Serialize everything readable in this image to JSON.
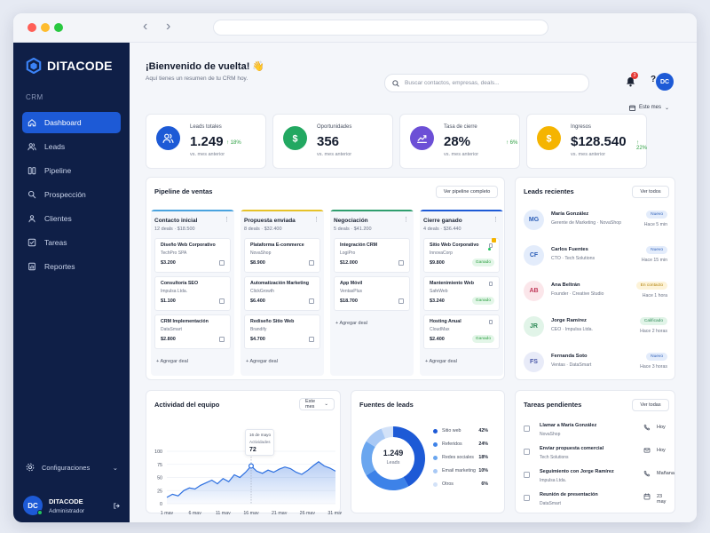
{
  "brand": {
    "name": "DITACODE"
  },
  "sidebar": {
    "section_label": "CRM",
    "items": [
      {
        "label": "Dashboard",
        "icon": "home-icon",
        "active": true
      },
      {
        "label": "Leads",
        "icon": "users-icon"
      },
      {
        "label": "Pipeline",
        "icon": "columns-icon"
      },
      {
        "label": "Prospección",
        "icon": "search-icon"
      },
      {
        "label": "Clientes",
        "icon": "user-group-icon"
      },
      {
        "label": "Tareas",
        "icon": "checkbox-icon"
      },
      {
        "label": "Reportes",
        "icon": "report-icon"
      }
    ],
    "config_label": "Configuraciones",
    "user": {
      "initials": "DC",
      "name": "DITACODE",
      "role": "Administrador"
    }
  },
  "header": {
    "welcome": "¡Bienvenido de vuelta! 👋",
    "subtitle": "Aquí tienes un resumen de tu CRM hoy.",
    "search_placeholder": "Buscar contactos, empresas, deals...",
    "notifications": "3",
    "avatar": "DC",
    "period": "Este mes"
  },
  "kpis": [
    {
      "label": "Leads totales",
      "value": "1.249",
      "delta": "18%",
      "sub": "vs. mes anterior",
      "color": "#1d5ad6",
      "icon": "users-icon"
    },
    {
      "label": "Oportunidades",
      "value": "356",
      "delta": "12%",
      "sub": "vs. mes anterior",
      "color": "#22a861",
      "icon": "dollar-icon"
    },
    {
      "label": "Tasa de cierre",
      "value": "28%",
      "delta": "6%",
      "sub": "vs. mes anterior",
      "color": "#6c4fd6",
      "icon": "chart-up-icon"
    },
    {
      "label": "Ingresos",
      "value": "$128.540",
      "delta": "22%",
      "sub": "vs. mes anterior",
      "color": "#f5b400",
      "icon": "dollar-icon"
    }
  ],
  "pipeline": {
    "title": "Pipeline de ventas",
    "button": "Ver pipeline completo",
    "add_label": "Agregar deal",
    "won_label": "Ganado",
    "columns": [
      {
        "title": "Contacto inicial",
        "sub": "12 deals · $18.500",
        "color": "#4aa3df",
        "deals": [
          {
            "name": "Diseño Web Corporativo",
            "company": "TechPro SPA",
            "amount": "$3.200"
          },
          {
            "name": "Consultoría SEO",
            "company": "Impulsa Ltda.",
            "amount": "$1.100"
          },
          {
            "name": "CRM Implementación",
            "company": "DataSmart",
            "amount": "$2.800"
          }
        ]
      },
      {
        "title": "Propuesta enviada",
        "sub": "8 deals · $32.400",
        "color": "#e6c229",
        "deals": [
          {
            "name": "Plataforma E-commerce",
            "company": "NovaShop",
            "amount": "$8.900"
          },
          {
            "name": "Automatización Marketing",
            "company": "ClickGrowth",
            "amount": "$6.400"
          },
          {
            "name": "Rediseño Sitio Web",
            "company": "Brandify",
            "amount": "$4.700"
          }
        ]
      },
      {
        "title": "Negociación",
        "sub": "5 deals · $41.200",
        "color": "#2f9e6e",
        "deals": [
          {
            "name": "Integración CRM",
            "company": "LogiPro",
            "amount": "$12.000"
          },
          {
            "name": "App Móvil",
            "company": "VentasPlus",
            "amount": "$18.700"
          }
        ]
      },
      {
        "title": "Cierre ganado",
        "sub": "4 deals · $36.440",
        "color": "#1d5ad6",
        "deals": [
          {
            "name": "Sitio Web Corporativo",
            "company": "InnovaCorp",
            "amount": "$9.800"
          },
          {
            "name": "Mantenimiento Web",
            "company": "SafeWeb",
            "amount": "$3.240"
          },
          {
            "name": "Hosting Anual",
            "company": "CloudMax",
            "amount": "$2.400"
          }
        ]
      }
    ]
  },
  "leads": {
    "title": "Leads recientes",
    "button": "Ver todos",
    "items": [
      {
        "initials": "MG",
        "name": "María González",
        "role": "Gerente de Marketing · NovaShop",
        "status": "Nuevo",
        "time": "Hace 5 min",
        "av_bg": "#e3ecfb",
        "av_fg": "#2d5fb8",
        "pill_bg": "#e3ecfb",
        "pill_fg": "#2d5fb8"
      },
      {
        "initials": "CF",
        "name": "Carlos Fuentes",
        "role": "CTO · Tech Solutions",
        "status": "Nuevo",
        "time": "Hace 15 min",
        "av_bg": "#e3ecfb",
        "av_fg": "#2d5fb8",
        "pill_bg": "#e3ecfb",
        "pill_fg": "#2d5fb8"
      },
      {
        "initials": "AB",
        "name": "Ana Beltrán",
        "role": "Founder · Creative Studio",
        "status": "En contacto",
        "time": "Hace 1 hora",
        "av_bg": "#fbe6ea",
        "av_fg": "#c0395a",
        "pill_bg": "#fdf3d8",
        "pill_fg": "#b0800a"
      },
      {
        "initials": "JR",
        "name": "Jorge Ramírez",
        "role": "CEO · Impulsa Ltda.",
        "status": "Calificado",
        "time": "Hace 2 horas",
        "av_bg": "#e1f4e8",
        "av_fg": "#2e8a57",
        "pill_bg": "#e1f4e8",
        "pill_fg": "#2e8a57"
      },
      {
        "initials": "FS",
        "name": "Fernanda Soto",
        "role": "Ventas · DataSmart",
        "status": "Nuevo",
        "time": "Hace 3 horas",
        "av_bg": "#e8ebf8",
        "av_fg": "#4a58a8",
        "pill_bg": "#e3ecfb",
        "pill_fg": "#2d5fb8"
      }
    ]
  },
  "activity": {
    "title": "Actividad del equipo",
    "period": "Este mes",
    "tooltip_date": "16 de mayo",
    "tooltip_label": "Actividades",
    "tooltip_value": "72"
  },
  "chart_data": {
    "type": "area",
    "x": [
      "1 may",
      "2 may",
      "3 may",
      "4 may",
      "5 may",
      "6 may",
      "7 may",
      "8 may",
      "9 may",
      "10 may",
      "11 may",
      "12 may",
      "13 may",
      "14 may",
      "15 may",
      "16 may",
      "17 may",
      "18 may",
      "19 may",
      "20 may",
      "21 may",
      "22 may",
      "23 may",
      "24 may",
      "25 may",
      "26 may",
      "27 may",
      "28 may",
      "29 may",
      "30 may",
      "31 may"
    ],
    "values": [
      12,
      18,
      15,
      25,
      30,
      28,
      35,
      40,
      45,
      38,
      48,
      42,
      55,
      50,
      60,
      72,
      62,
      58,
      64,
      60,
      66,
      70,
      67,
      60,
      56,
      63,
      72,
      80,
      72,
      68,
      62
    ],
    "xticks": [
      "1 may",
      "6 may",
      "11 may",
      "16 may",
      "21 may",
      "26 may",
      "31 may"
    ],
    "yticks": [
      0,
      25,
      50,
      75,
      100
    ],
    "ylim": [
      0,
      100
    ],
    "grid": true,
    "color": "#2c6fe0"
  },
  "sources": {
    "title": "Fuentes de leads",
    "total": "1.249",
    "total_label": "Leads",
    "items": [
      {
        "name": "Sitio web",
        "pct": "42%",
        "value": 42,
        "color": "#1d5ad6"
      },
      {
        "name": "Referidos",
        "pct": "24%",
        "value": 24,
        "color": "#3d82e8"
      },
      {
        "name": "Redes sociales",
        "pct": "18%",
        "value": 18,
        "color": "#6aa6ef"
      },
      {
        "name": "Email marketing",
        "pct": "10%",
        "value": 10,
        "color": "#a9c9f5"
      },
      {
        "name": "Otros",
        "pct": "6%",
        "value": 6,
        "color": "#d3e2f8"
      }
    ]
  },
  "tasks": {
    "title": "Tareas pendientes",
    "button": "Ver todas",
    "items": [
      {
        "title": "Llamar a María González",
        "company": "NovaShop",
        "due": "Hoy",
        "icon": "phone-icon"
      },
      {
        "title": "Enviar propuesta comercial",
        "company": "Tech Solutions",
        "due": "Hoy",
        "icon": "mail-icon"
      },
      {
        "title": "Seguimiento con Jorge Ramírez",
        "company": "Impulsa Ltda.",
        "due": "Mañana",
        "icon": "phone-icon"
      },
      {
        "title": "Reunión de presentación",
        "company": "DataSmart",
        "due": "23 may",
        "icon": "calendar-icon"
      }
    ]
  }
}
